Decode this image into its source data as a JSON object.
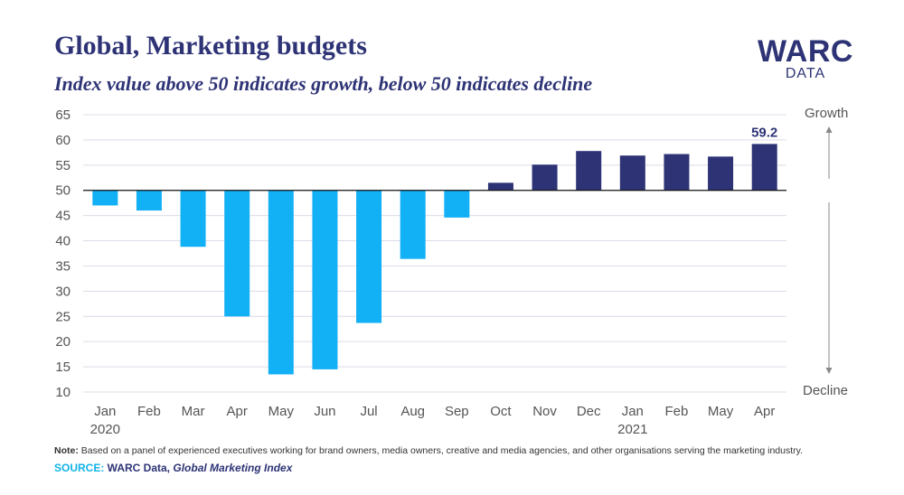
{
  "title": "Global, Marketing budgets",
  "subtitle": "Index value above 50 indicates growth, below 50 indicates decline",
  "logo": {
    "main": "WARC",
    "sub": "DATA"
  },
  "labels": {
    "growth": "Growth",
    "decline": "Decline"
  },
  "note": {
    "key": "Note:",
    "text": " Based on a panel of experienced executives working for brand owners, media owners, creative and media agencies, and other organisations serving the marketing industry."
  },
  "source": {
    "key": "SOURCE:",
    "org": " WARC Data, ",
    "title": "Global Marketing Index"
  },
  "colors": {
    "decline": "#12b0f5",
    "growth": "#2d3375",
    "grid": "#dcdce8",
    "baseline": "#111111",
    "text": "#555555"
  },
  "chart_data": {
    "type": "bar",
    "baseline": 50,
    "ylim": [
      10,
      65
    ],
    "yticks": [
      10,
      15,
      20,
      25,
      30,
      35,
      40,
      45,
      50,
      55,
      60,
      65
    ],
    "grid": true,
    "categories": [
      "Jan",
      "Feb",
      "Mar",
      "Apr",
      "May",
      "Jun",
      "Jul",
      "Aug",
      "Sep",
      "Oct",
      "Nov",
      "Dec",
      "Jan",
      "Feb",
      "May",
      "Apr"
    ],
    "year_labels": [
      "2020",
      "",
      "",
      "",
      "",
      "",
      "",
      "",
      "",
      "",
      "",
      "",
      "2021",
      "",
      "",
      ""
    ],
    "values": [
      47.0,
      46.0,
      38.8,
      25.0,
      13.5,
      14.5,
      23.7,
      36.4,
      44.6,
      51.5,
      55.1,
      57.8,
      56.9,
      57.2,
      56.7,
      59.2
    ],
    "data_labels": [
      "",
      "",
      "",
      "",
      "",
      "",
      "",
      "",
      "",
      "",
      "",
      "",
      "",
      "",
      "",
      "59.2"
    ]
  }
}
